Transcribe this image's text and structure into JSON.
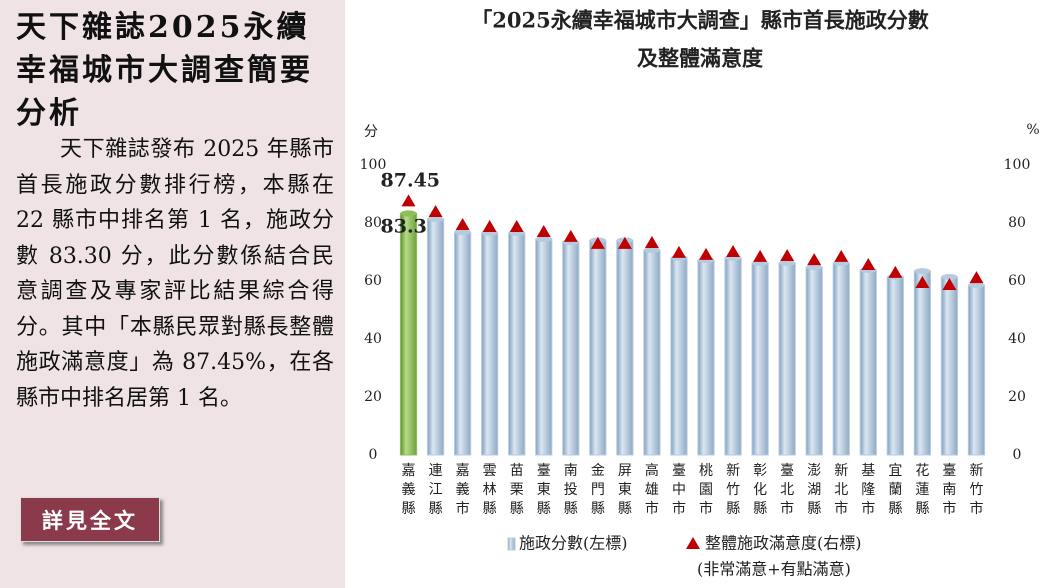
{
  "sidebar": {
    "title": "天下雜誌2025永續幸福城市大調查簡要分析",
    "body": "天下雜誌發布 2025 年縣市首長施政分數排行榜，本縣在 22 縣市中排名第 1 名，施政分數 83.30 分，此分數係結合民意調查及專家評比結果綜合得分。其中「本縣民眾對縣長整體施政滿意度」為 87.45%，在各縣市中排名居第 1 名。",
    "button": "詳見全文"
  },
  "chart_data": {
    "type": "bar-triangle",
    "title": [
      "「2025永續幸福城市大調查」縣市首長施政分數",
      "及整體滿意度"
    ],
    "y_label": "分",
    "y2_label": "%",
    "categories": [
      "嘉義縣",
      "連江縣",
      "嘉義市",
      "雲林縣",
      "苗栗縣",
      "臺東縣",
      "南投縣",
      "金門縣",
      "屏東縣",
      "高雄市",
      "臺中市",
      "桃園市",
      "新竹縣",
      "彰化縣",
      "臺北市",
      "澎湖縣",
      "新北市",
      "基隆市",
      "宜蘭縣",
      "花蓮縣",
      "臺南市",
      "新竹市"
    ],
    "series": [
      {
        "name": "施政分數(左標)",
        "color": "#b7cbe0",
        "highlight_color": "#8cbf55",
        "values": [
          83.3,
          81.4,
          76.9,
          76.6,
          76.6,
          74.5,
          73.4,
          74,
          74,
          70.7,
          68,
          67.2,
          68,
          66.2,
          66.2,
          64.8,
          66.2,
          63.8,
          61.4,
          63.4,
          61.4,
          58.6
        ],
        "value_labels": [
          "83.30",
          null,
          null,
          null,
          null,
          null,
          null,
          null,
          null,
          null,
          null,
          null,
          null,
          null,
          null,
          null,
          null,
          null,
          null,
          null,
          null,
          null
        ]
      },
      {
        "name": "整體施政滿意度(右標)",
        "color": "#c00000",
        "axis": "y2",
        "values": [
          87.45,
          83.8,
          79.3,
          78.6,
          78.6,
          76.9,
          75.2,
          72.8,
          72.8,
          73.1,
          69.7,
          69,
          70,
          68.3,
          68.6,
          67.2,
          68.3,
          65.5,
          62.8,
          59.3,
          58.6,
          61
        ],
        "value_labels": [
          "87.45",
          null,
          null,
          null,
          null,
          null,
          null,
          null,
          null,
          null,
          null,
          null,
          null,
          null,
          null,
          null,
          null,
          null,
          null,
          null,
          null,
          null
        ]
      }
    ],
    "legend_note": "(非常滿意+有點滿意)",
    "ylim": [
      0,
      100
    ],
    "yticks": [
      0,
      20,
      40,
      60,
      80,
      100
    ],
    "y2lim": [
      0,
      100
    ],
    "y2ticks": [
      0,
      20,
      40,
      60,
      80,
      100
    ],
    "grid": false
  }
}
